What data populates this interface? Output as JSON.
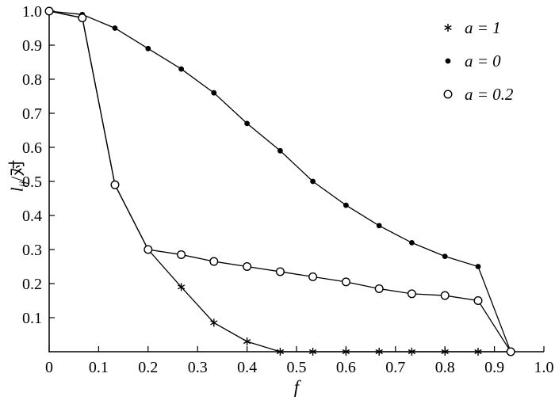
{
  "figure": {
    "ylabel": {
      "variable": "l",
      "subscript": "ij",
      "suffix": "/对"
    },
    "xlabel": "f"
  },
  "chart_data": {
    "type": "line",
    "title": "",
    "xlabel": "f",
    "ylabel": "l_ij/对",
    "xlim": [
      0,
      1.0
    ],
    "ylim": [
      0,
      1.0
    ],
    "grid": false,
    "legend_position": "top-right-inside",
    "line_color": "#000000",
    "x_tick_labels": [
      "0",
      "0.1",
      "0.2",
      "0.3",
      "0.4",
      "0.5",
      "0.6",
      "0.7",
      "0.8",
      "0.9",
      "1.0"
    ],
    "y_tick_labels": [
      "0.1",
      "0.2",
      "0.3",
      "0.4",
      "0.5",
      "0.6",
      "0.7",
      "0.8",
      "0.9",
      "1.0"
    ],
    "x": [
      0,
      0.067,
      0.133,
      0.2,
      0.267,
      0.333,
      0.4,
      0.467,
      0.533,
      0.6,
      0.667,
      0.733,
      0.8,
      0.867,
      0.933
    ],
    "series": [
      {
        "name": "a = 1",
        "marker": "asterisk",
        "values": [
          1.0,
          0.98,
          0.49,
          0.3,
          0.19,
          0.085,
          0.03,
          0,
          0,
          0,
          0,
          0,
          0,
          0,
          0
        ]
      },
      {
        "name": "a = 0",
        "marker": "filled-dot",
        "values": [
          1.0,
          0.99,
          0.95,
          0.89,
          0.83,
          0.76,
          0.67,
          0.59,
          0.5,
          0.43,
          0.37,
          0.32,
          0.28,
          0.25,
          0
        ]
      },
      {
        "name": "a = 0.2",
        "marker": "open-circle",
        "values": [
          1.0,
          0.98,
          0.49,
          0.3,
          0.285,
          0.265,
          0.25,
          0.235,
          0.22,
          0.205,
          0.185,
          0.17,
          0.165,
          0.15,
          0
        ]
      }
    ]
  }
}
